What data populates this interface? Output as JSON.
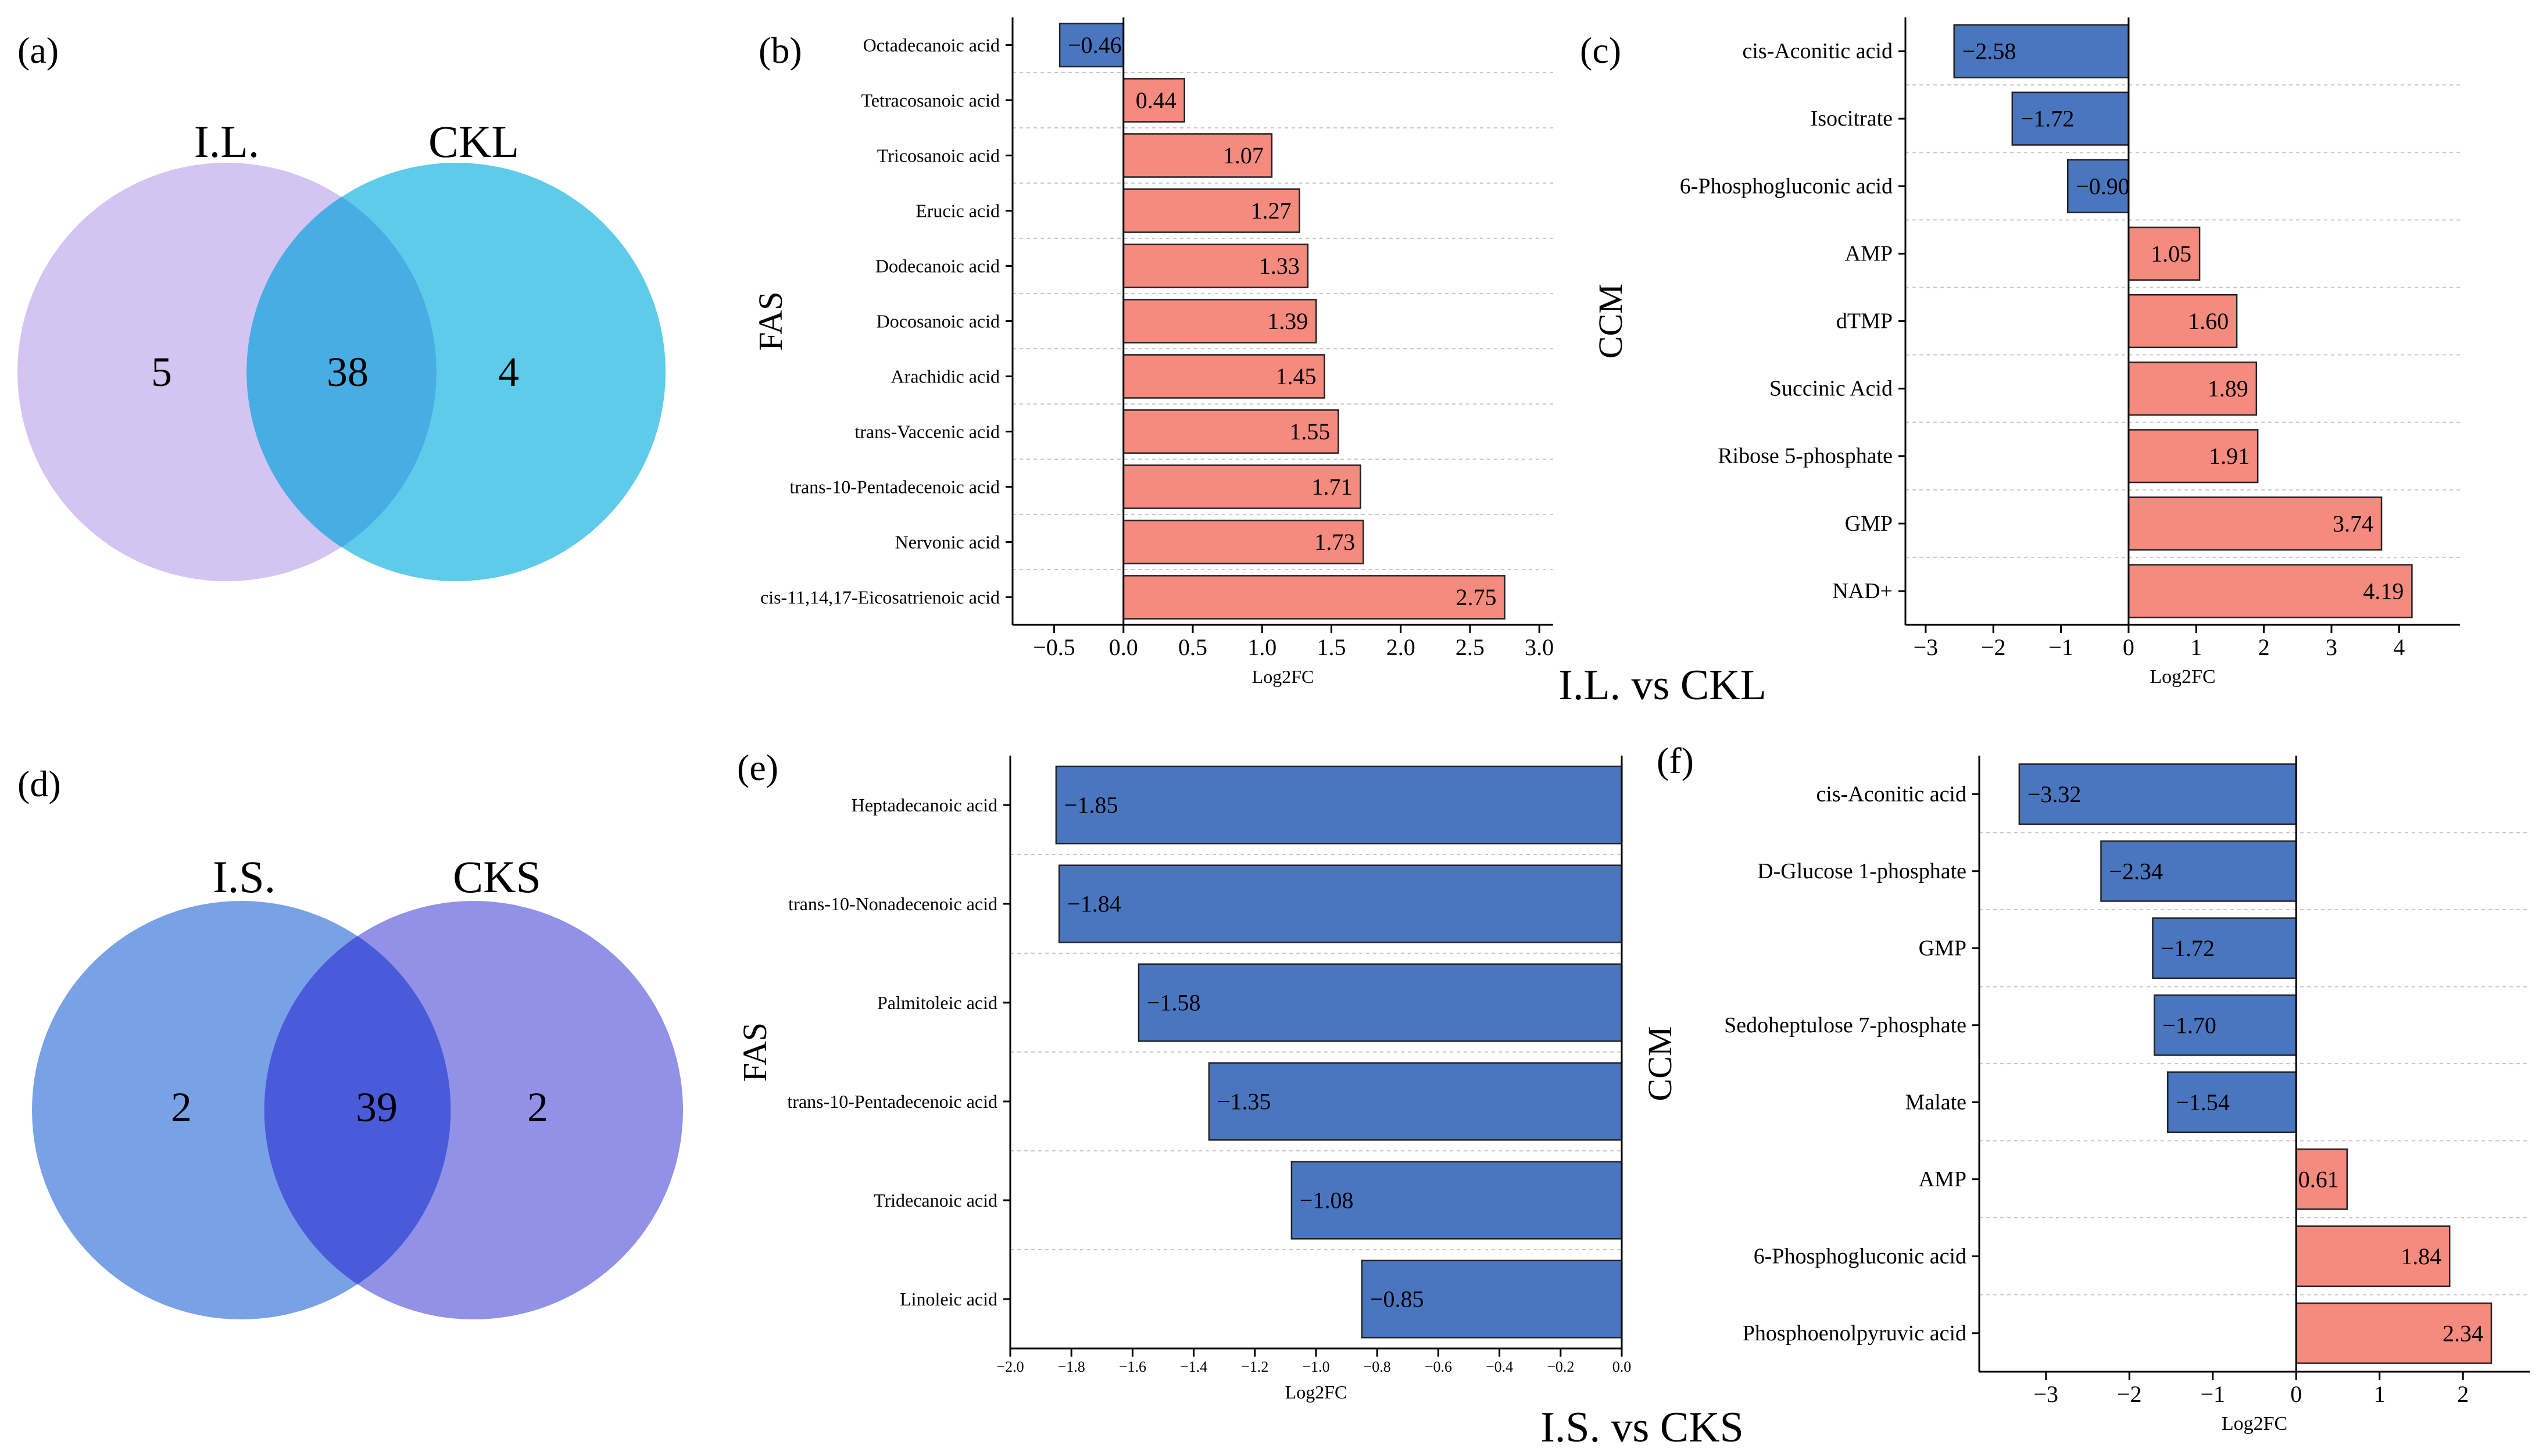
{
  "venns": [
    {
      "panel": "(a)",
      "left": "I.L.",
      "right": "CKL",
      "left_only": "5",
      "both": "38",
      "right_only": "4",
      "left_color": "#d4c4f2",
      "right_color": "#5ecbea",
      "overlap_color": "#47ade3"
    },
    {
      "panel": "(d)",
      "left": "I.S.",
      "right": "CKS",
      "left_only": "2",
      "both": "39",
      "right_only": "2",
      "left_color": "#79a2e6",
      "right_color": "#9191e8",
      "overlap_color": "#4a5bda"
    }
  ],
  "comparisons": [
    {
      "title": "I.L. vs CKL"
    },
    {
      "title": "I.S. vs CKS"
    }
  ],
  "colors": {
    "positive": "#f58a7e",
    "negative": "#4a75bf"
  },
  "chart_data": [
    {
      "panel": "(b)",
      "type": "bar",
      "orientation": "horizontal",
      "ylabel": "FAS",
      "xlabel": "Log2FC",
      "xlim": [
        -0.8,
        3.1
      ],
      "xticks": [
        -0.5,
        0.0,
        0.5,
        1.0,
        1.5,
        2.0,
        2.5,
        3.0
      ],
      "xtick_labels": [
        "−0.5",
        "0.0",
        "0.5",
        "1.0",
        "1.5",
        "2.0",
        "2.5",
        "3.0"
      ],
      "categories": [
        "Octadecanoic acid",
        "Tetracosanoic acid",
        "Tricosanoic acid",
        "Erucic acid",
        "Dodecanoic acid",
        "Docosanoic acid",
        "Arachidic acid",
        "trans-Vaccenic acid",
        "trans-10-Pentadecenoic acid",
        "Nervonic acid",
        "cis-11,14,17-Eicosatrienoic acid"
      ],
      "values": [
        -0.46,
        0.44,
        1.07,
        1.27,
        1.33,
        1.39,
        1.45,
        1.55,
        1.71,
        1.73,
        2.75
      ],
      "value_labels": [
        "−0.46",
        "0.44",
        "1.07",
        "1.27",
        "1.33",
        "1.39",
        "1.45",
        "1.55",
        "1.71",
        "1.73",
        "2.75"
      ]
    },
    {
      "panel": "(c)",
      "type": "bar",
      "orientation": "horizontal",
      "ylabel": "CCM",
      "xlabel": "Log2FC",
      "xlim": [
        -3.3,
        4.9
      ],
      "xticks": [
        -3,
        -2,
        -1,
        0,
        1,
        2,
        3,
        4
      ],
      "xtick_labels": [
        "−3",
        "−2",
        "−1",
        "0",
        "1",
        "2",
        "3",
        "4"
      ],
      "categories": [
        "cis-Aconitic acid",
        "Isocitrate",
        "6-Phosphogluconic acid",
        "AMP",
        "dTMP",
        "Succinic Acid",
        "Ribose 5-phosphate",
        "GMP",
        "NAD+"
      ],
      "values": [
        -2.58,
        -1.72,
        -0.9,
        1.05,
        1.6,
        1.89,
        1.91,
        3.74,
        4.19
      ],
      "value_labels": [
        "−2.58",
        "−1.72",
        "−0.90",
        "1.05",
        "1.60",
        "1.89",
        "1.91",
        "3.74",
        "4.19"
      ]
    },
    {
      "panel": "(e)",
      "type": "bar",
      "orientation": "horizontal",
      "ylabel": "FAS",
      "xlabel": "Log2FC",
      "xlim": [
        -2.0,
        0.0
      ],
      "xticks": [
        -2.0,
        -1.8,
        -1.6,
        -1.4,
        -1.2,
        -1.0,
        -0.8,
        -0.6,
        -0.4,
        -0.2,
        0.0
      ],
      "xtick_labels": [
        "−2.0",
        "−1.8",
        "−1.6",
        "−1.4",
        "−1.2",
        "−1.0",
        "−0.8",
        "−0.6",
        "−0.4",
        "−0.2",
        "0.0"
      ],
      "categories": [
        "Heptadecanoic acid",
        "trans-10-Nonadecenoic acid",
        "Palmitoleic acid",
        "trans-10-Pentadecenoic acid",
        "Tridecanoic acid",
        "Linoleic acid"
      ],
      "values": [
        -1.85,
        -1.84,
        -1.58,
        -1.35,
        -1.08,
        -0.85
      ],
      "value_labels": [
        "−1.85",
        "−1.84",
        "−1.58",
        "−1.35",
        "−1.08",
        "−0.85"
      ]
    },
    {
      "panel": "(f)",
      "type": "bar",
      "orientation": "horizontal",
      "ylabel": "CCM",
      "xlabel": "Log2FC",
      "xlim": [
        -3.8,
        2.8
      ],
      "xticks": [
        -3,
        -2,
        -1,
        0,
        1,
        2
      ],
      "xtick_labels": [
        "−3",
        "−2",
        "−1",
        "0",
        "1",
        "2"
      ],
      "categories": [
        "cis-Aconitic acid",
        "D-Glucose 1-phosphate",
        "GMP",
        "Sedoheptulose 7-phosphate",
        "Malate",
        "AMP",
        "6-Phosphogluconic acid",
        "Phosphoenolpyruvic acid"
      ],
      "values": [
        -3.32,
        -2.34,
        -1.72,
        -1.7,
        -1.54,
        0.61,
        1.84,
        2.34
      ],
      "value_labels": [
        "−3.32",
        "−2.34",
        "−1.72",
        "−1.70",
        "−1.54",
        "0.61",
        "1.84",
        "2.34"
      ]
    }
  ]
}
